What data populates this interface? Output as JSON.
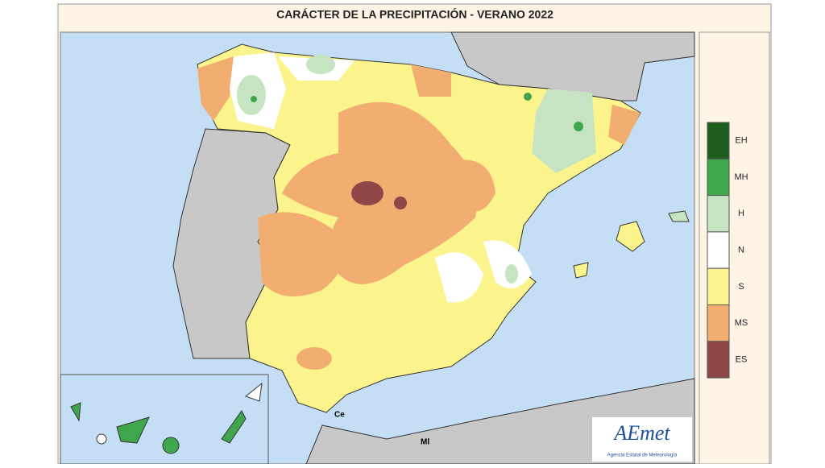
{
  "title": "CARÁCTER DE LA PRECIPITACIÓN - VERANO  2022",
  "legend": [
    {
      "label": "EH",
      "color": "#1d5e1d"
    },
    {
      "label": "MH",
      "color": "#3fa64c"
    },
    {
      "label": "H",
      "color": "#c6e4c2"
    },
    {
      "label": "N",
      "color": "#ffffff"
    },
    {
      "label": "S",
      "color": "#fbf48c"
    },
    {
      "label": "MS",
      "color": "#f2ad70"
    },
    {
      "label": "ES",
      "color": "#8e4646"
    }
  ],
  "places": [
    "Ce",
    "Ml"
  ],
  "logo": {
    "name": "AEmet",
    "subtitle": "Agencia Estatal de Meteorología"
  }
}
